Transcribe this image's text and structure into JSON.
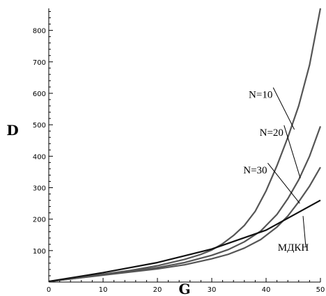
{
  "chart_data": {
    "type": "line",
    "xlabel": "G",
    "ylabel": "D",
    "xlim": [
      0,
      50
    ],
    "ylim": [
      0,
      870
    ],
    "x_ticks": [
      0,
      10,
      20,
      30,
      40,
      50
    ],
    "y_ticks": [
      100,
      200,
      300,
      400,
      500,
      600,
      700,
      800
    ],
    "grid": false,
    "series": [
      {
        "name": "N=10",
        "color": "#555555",
        "x": [
          0,
          5,
          10,
          15,
          20,
          25,
          28,
          30,
          32,
          34,
          36,
          38,
          40,
          42,
          44,
          46,
          48,
          50
        ],
        "y": [
          2,
          13,
          25,
          37,
          52,
          72,
          88,
          102,
          122,
          148,
          180,
          225,
          290,
          370,
          460,
          560,
          690,
          870
        ]
      },
      {
        "name": "N=20",
        "color": "#555555",
        "x": [
          0,
          5,
          10,
          15,
          20,
          25,
          30,
          33,
          36,
          39,
          42,
          44,
          46,
          48,
          50
        ],
        "y": [
          2,
          12,
          23,
          34,
          46,
          62,
          85,
          103,
          128,
          162,
          215,
          265,
          325,
          400,
          495
        ]
      },
      {
        "name": "N=30",
        "color": "#555555",
        "x": [
          0,
          5,
          10,
          15,
          20,
          25,
          30,
          33,
          36,
          39,
          42,
          44,
          46,
          48,
          50
        ],
        "y": [
          2,
          12,
          22,
          32,
          42,
          55,
          74,
          88,
          108,
          135,
          175,
          210,
          255,
          305,
          365
        ]
      },
      {
        "name": "МДКН",
        "color": "#111111",
        "x": [
          0,
          10,
          20,
          30,
          40,
          50
        ],
        "y": [
          2,
          30,
          62,
          105,
          165,
          260
        ]
      }
    ],
    "annotations": [
      {
        "text": "N=10",
        "series": "N=10",
        "label_at": [
          39,
          585
        ],
        "point_at": [
          45.2,
          485
        ]
      },
      {
        "text": "N=20",
        "series": "N=20",
        "label_at": [
          41,
          465
        ],
        "point_at": [
          46.3,
          330
        ]
      },
      {
        "text": "N=30",
        "series": "N=30",
        "label_at": [
          38,
          345
        ],
        "point_at": [
          46.2,
          250
        ]
      },
      {
        "text": "МДКН",
        "series": "МДКН",
        "label_at": [
          45,
          100
        ],
        "point_at": [
          46.8,
          210
        ]
      }
    ]
  }
}
